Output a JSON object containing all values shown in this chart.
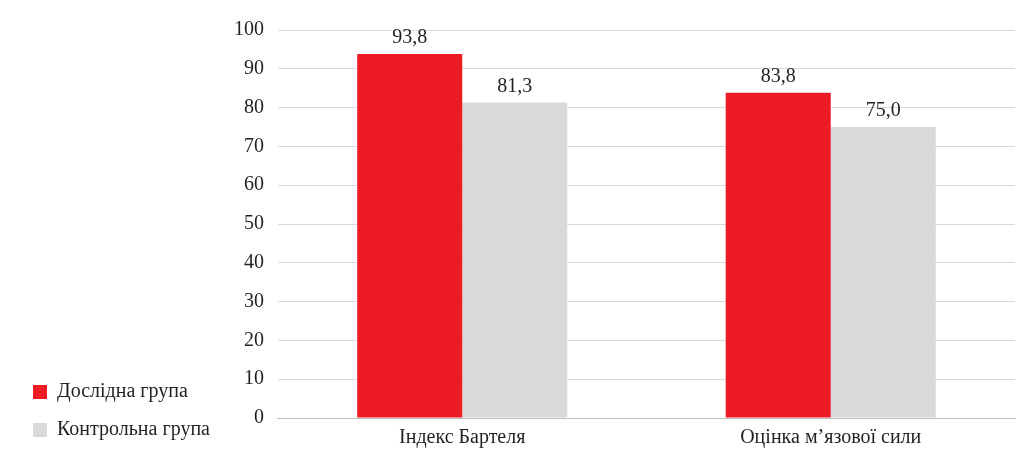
{
  "chart_data": {
    "type": "bar",
    "categories": [
      "Індекс Бартеля",
      "Оцінка м’язової сили"
    ],
    "series": [
      {
        "name": "Дослідна група",
        "color": "#ed1c24",
        "values": [
          93.8,
          83.8
        ],
        "value_labels": [
          "93,8",
          "83,8"
        ]
      },
      {
        "name": "Контрольна група",
        "color": "#d9d9db",
        "values": [
          81.3,
          75.0
        ],
        "value_labels": [
          "81,3",
          "75,0"
        ]
      }
    ],
    "ylim": [
      0,
      100
    ],
    "yticks": [
      0,
      10,
      20,
      30,
      40,
      50,
      60,
      70,
      80,
      90,
      100
    ],
    "grid": "y",
    "legend": "bottom left"
  }
}
